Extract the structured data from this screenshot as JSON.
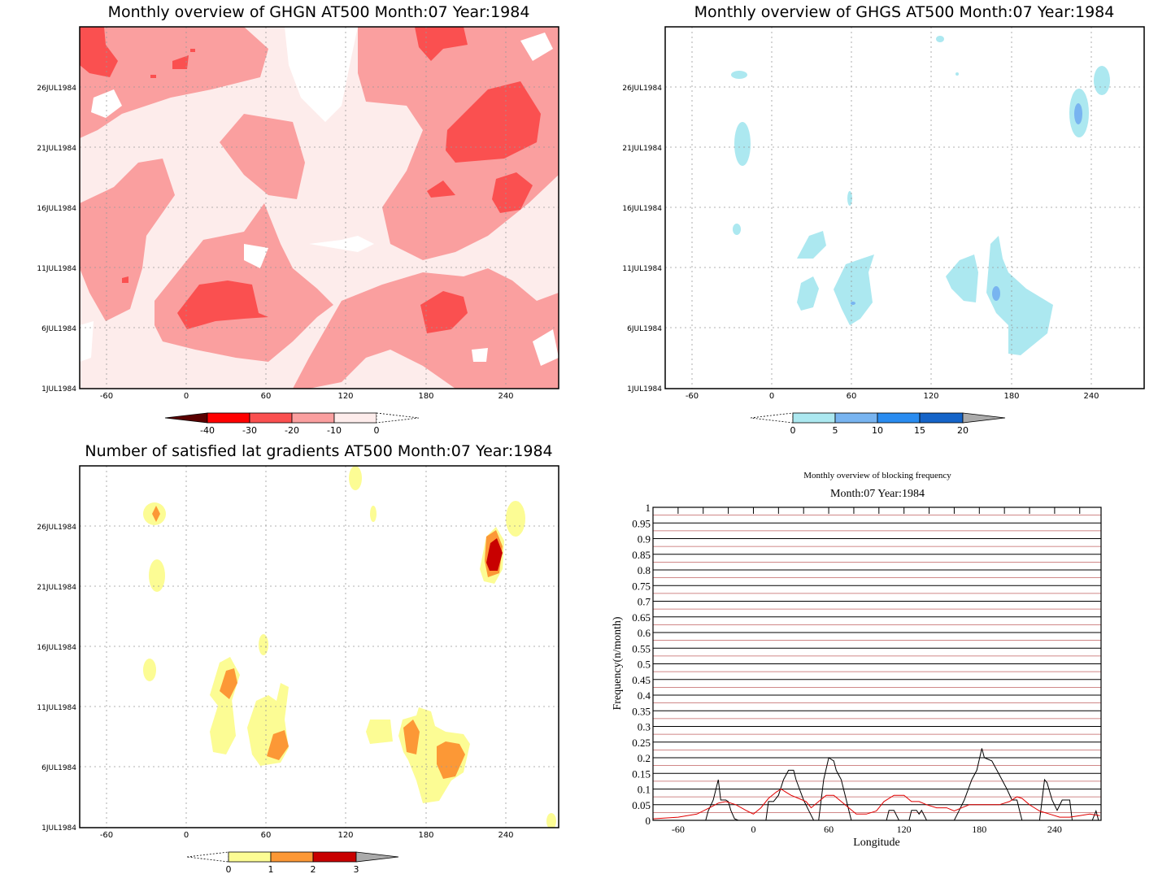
{
  "panels": {
    "ghgn": {
      "title": "Monthly overview of GHGN AT500 Month:07 Year:1984",
      "colorbar": {
        "labels": [
          "-40",
          "-30",
          "-20",
          "-10",
          "0"
        ],
        "colors": [
          "#5a0000",
          "#ff0000",
          "#fa5050",
          "#fa9f9f",
          "#fdeceb"
        ]
      }
    },
    "ghgs": {
      "title": "Monthly overview of GHGS AT500 Month:07 Year:1984",
      "colorbar": {
        "labels": [
          "0",
          "5",
          "10",
          "15",
          "20"
        ],
        "colors": [
          "#ace8f0",
          "#78b4f0",
          "#2a8cf0",
          "#1564c8",
          "#aaaaaa"
        ]
      }
    },
    "lat": {
      "title": "Number of satisfied lat gradients AT500 Month:07 Year:1984",
      "colorbar": {
        "labels": [
          "0",
          "1",
          "2",
          "3"
        ],
        "colors": [
          "#fcfc94",
          "#fc9836",
          "#c80000",
          "#aaaaaa"
        ]
      }
    }
  },
  "map_axes": {
    "x_ticks": [
      "-60",
      "0",
      "60",
      "120",
      "180",
      "240"
    ],
    "y_ticks": [
      "1JUL1984",
      "6JUL1984",
      "11JUL1984",
      "16JUL1984",
      "21JUL1984",
      "26JUL1984"
    ]
  },
  "chart_data": {
    "type": "line",
    "title": "Monthly overview of blocking frequency",
    "subtitle": "Month:07 Year:1984",
    "xlabel": "Longitude",
    "ylabel": "Frequency(n/month)",
    "xlim": [
      -80,
      277
    ],
    "ylim": [
      0,
      1
    ],
    "x_ticks": [
      "-60",
      "0",
      "60",
      "120",
      "180",
      "240"
    ],
    "y_ticks": [
      "0",
      "0.05",
      "0.1",
      "0.15",
      "0.2",
      "0.25",
      "0.3",
      "0.35",
      "0.4",
      "0.45",
      "0.5",
      "0.55",
      "0.6",
      "0.65",
      "0.7",
      "0.75",
      "0.8",
      "0.85",
      "0.9",
      "0.95",
      "1"
    ],
    "grid": true,
    "series": [
      {
        "color": "#000000",
        "points": [
          [
            -80,
            0
          ],
          [
            -38,
            0
          ],
          [
            -36,
            0.03
          ],
          [
            -32,
            0.065
          ],
          [
            -28,
            0.13
          ],
          [
            -26,
            0.065
          ],
          [
            -22,
            0.065
          ],
          [
            -20,
            0.06
          ],
          [
            -18,
            0.032
          ],
          [
            -15,
            0.005
          ],
          [
            -12,
            0
          ],
          [
            10,
            0
          ],
          [
            12,
            0.06
          ],
          [
            16,
            0.06
          ],
          [
            20,
            0.08
          ],
          [
            24,
            0.13
          ],
          [
            28,
            0.16
          ],
          [
            32,
            0.16
          ],
          [
            34,
            0.13
          ],
          [
            40,
            0.065
          ],
          [
            44,
            0.032
          ],
          [
            48,
            0
          ],
          [
            52,
            0
          ],
          [
            56,
            0.13
          ],
          [
            60,
            0.2
          ],
          [
            64,
            0.19
          ],
          [
            66,
            0.16
          ],
          [
            70,
            0.13
          ],
          [
            74,
            0.065
          ],
          [
            76,
            0.032
          ],
          [
            78,
            0
          ],
          [
            106,
            0
          ],
          [
            108,
            0.032
          ],
          [
            112,
            0.032
          ],
          [
            116,
            0
          ],
          [
            124,
            0
          ],
          [
            126,
            0.032
          ],
          [
            130,
            0.032
          ],
          [
            132,
            0.02
          ],
          [
            134,
            0.032
          ],
          [
            138,
            0
          ],
          [
            160,
            0
          ],
          [
            164,
            0.032
          ],
          [
            168,
            0.065
          ],
          [
            174,
            0.13
          ],
          [
            178,
            0.16
          ],
          [
            182,
            0.23
          ],
          [
            184,
            0.2
          ],
          [
            190,
            0.19
          ],
          [
            194,
            0.16
          ],
          [
            198,
            0.13
          ],
          [
            202,
            0.1
          ],
          [
            206,
            0.065
          ],
          [
            210,
            0.065
          ],
          [
            212,
            0.032
          ],
          [
            214,
            0
          ],
          [
            228,
            0
          ],
          [
            232,
            0.13
          ],
          [
            234,
            0.12
          ],
          [
            238,
            0.065
          ],
          [
            242,
            0.032
          ],
          [
            246,
            0.065
          ],
          [
            252,
            0.065
          ],
          [
            254,
            0
          ],
          [
            270,
            0
          ],
          [
            273,
            0.03
          ],
          [
            275,
            0
          ]
        ]
      },
      {
        "color": "#e00000",
        "points": [
          [
            -80,
            0.005
          ],
          [
            -60,
            0.01
          ],
          [
            -45,
            0.02
          ],
          [
            -35,
            0.04
          ],
          [
            -28,
            0.055
          ],
          [
            -22,
            0.06
          ],
          [
            -14,
            0.05
          ],
          [
            -5,
            0.03
          ],
          [
            0,
            0.02
          ],
          [
            6,
            0.04
          ],
          [
            12,
            0.07
          ],
          [
            18,
            0.09
          ],
          [
            22,
            0.1
          ],
          [
            26,
            0.09
          ],
          [
            30,
            0.08
          ],
          [
            36,
            0.07
          ],
          [
            42,
            0.06
          ],
          [
            46,
            0.04
          ],
          [
            52,
            0.06
          ],
          [
            58,
            0.08
          ],
          [
            64,
            0.08
          ],
          [
            70,
            0.06
          ],
          [
            76,
            0.04
          ],
          [
            82,
            0.02
          ],
          [
            90,
            0.02
          ],
          [
            98,
            0.03
          ],
          [
            104,
            0.06
          ],
          [
            112,
            0.08
          ],
          [
            120,
            0.08
          ],
          [
            126,
            0.06
          ],
          [
            132,
            0.06
          ],
          [
            138,
            0.05
          ],
          [
            146,
            0.04
          ],
          [
            154,
            0.04
          ],
          [
            160,
            0.03
          ],
          [
            166,
            0.04
          ],
          [
            172,
            0.05
          ],
          [
            180,
            0.05
          ],
          [
            188,
            0.05
          ],
          [
            196,
            0.05
          ],
          [
            204,
            0.06
          ],
          [
            210,
            0.075
          ],
          [
            214,
            0.07
          ],
          [
            220,
            0.05
          ],
          [
            228,
            0.03
          ],
          [
            236,
            0.02
          ],
          [
            244,
            0.01
          ],
          [
            252,
            0.01
          ],
          [
            260,
            0.015
          ],
          [
            268,
            0.02
          ],
          [
            276,
            0.015
          ]
        ]
      }
    ]
  }
}
